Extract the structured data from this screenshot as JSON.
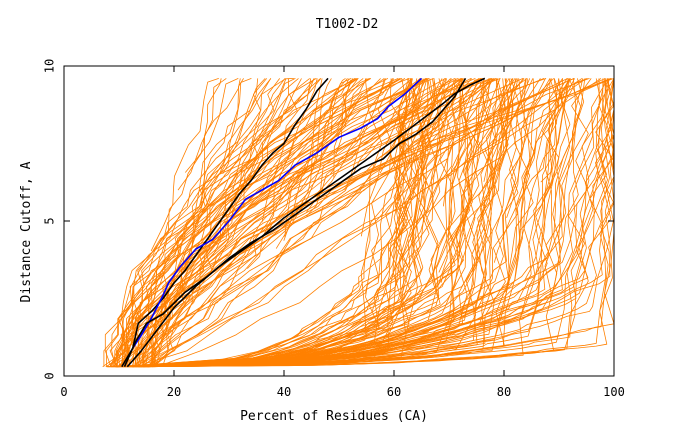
{
  "chart_data": {
    "type": "line",
    "title": "T1002-D2",
    "xlabel": "Percent of Residues (CA)",
    "ylabel": "Distance Cutoff, A",
    "xlim": [
      0,
      100
    ],
    "ylim": [
      0,
      10
    ],
    "xticks": [
      0,
      20,
      40,
      60,
      80,
      100
    ],
    "yticks": [
      0,
      5,
      10
    ],
    "colors": {
      "background_series": "#ff8000",
      "highlight_black": "#000000",
      "highlight_blue": "#0000ff"
    },
    "background_series_note": "Dense bundle of orange GDT curves, approximated procedurally",
    "highlight_series": [
      {
        "name": "black-1",
        "color": "#000000",
        "x": [
          10.5,
          12.5,
          13.5,
          16,
          18,
          20,
          22,
          24,
          26,
          28,
          30,
          32,
          34,
          36,
          38,
          40,
          42,
          44,
          46,
          48
        ],
        "y": [
          0.3,
          0.9,
          1.7,
          2.1,
          2.5,
          3.0,
          3.4,
          3.9,
          4.4,
          4.9,
          5.4,
          5.9,
          6.3,
          6.8,
          7.2,
          7.5,
          8.1,
          8.6,
          9.2,
          9.6
        ]
      },
      {
        "name": "blue",
        "color": "#0000ff",
        "x": [
          12.5,
          14,
          16,
          18,
          19,
          21,
          24,
          27,
          30,
          33,
          36,
          39,
          42,
          46,
          50,
          54,
          57,
          59,
          62,
          65
        ],
        "y": [
          0.9,
          1.3,
          1.9,
          2.6,
          3.0,
          3.5,
          4.1,
          4.4,
          5.0,
          5.7,
          6.0,
          6.3,
          6.8,
          7.2,
          7.7,
          8.0,
          8.3,
          8.7,
          9.1,
          9.6
        ]
      },
      {
        "name": "black-2",
        "color": "#000000",
        "x": [
          11.5,
          14,
          17,
          20,
          24,
          28,
          32,
          36,
          40,
          44,
          48,
          52,
          56,
          60,
          63,
          66,
          69,
          71,
          74,
          76.5
        ],
        "y": [
          0.3,
          0.8,
          1.5,
          2.2,
          2.9,
          3.5,
          4.0,
          4.5,
          5.1,
          5.6,
          6.1,
          6.6,
          7.1,
          7.6,
          8.0,
          8.4,
          8.8,
          9.1,
          9.4,
          9.6
        ]
      },
      {
        "name": "black-3",
        "color": "#000000",
        "x": [
          11,
          13,
          15,
          18,
          22,
          26,
          30,
          34,
          38,
          42,
          46,
          50,
          54,
          58,
          61,
          64,
          67,
          69,
          71,
          73
        ],
        "y": [
          0.3,
          1.1,
          1.7,
          2.0,
          2.7,
          3.2,
          3.8,
          4.3,
          4.7,
          5.2,
          5.7,
          6.2,
          6.7,
          7.0,
          7.5,
          7.8,
          8.2,
          8.6,
          9.0,
          9.6
        ]
      }
    ]
  }
}
